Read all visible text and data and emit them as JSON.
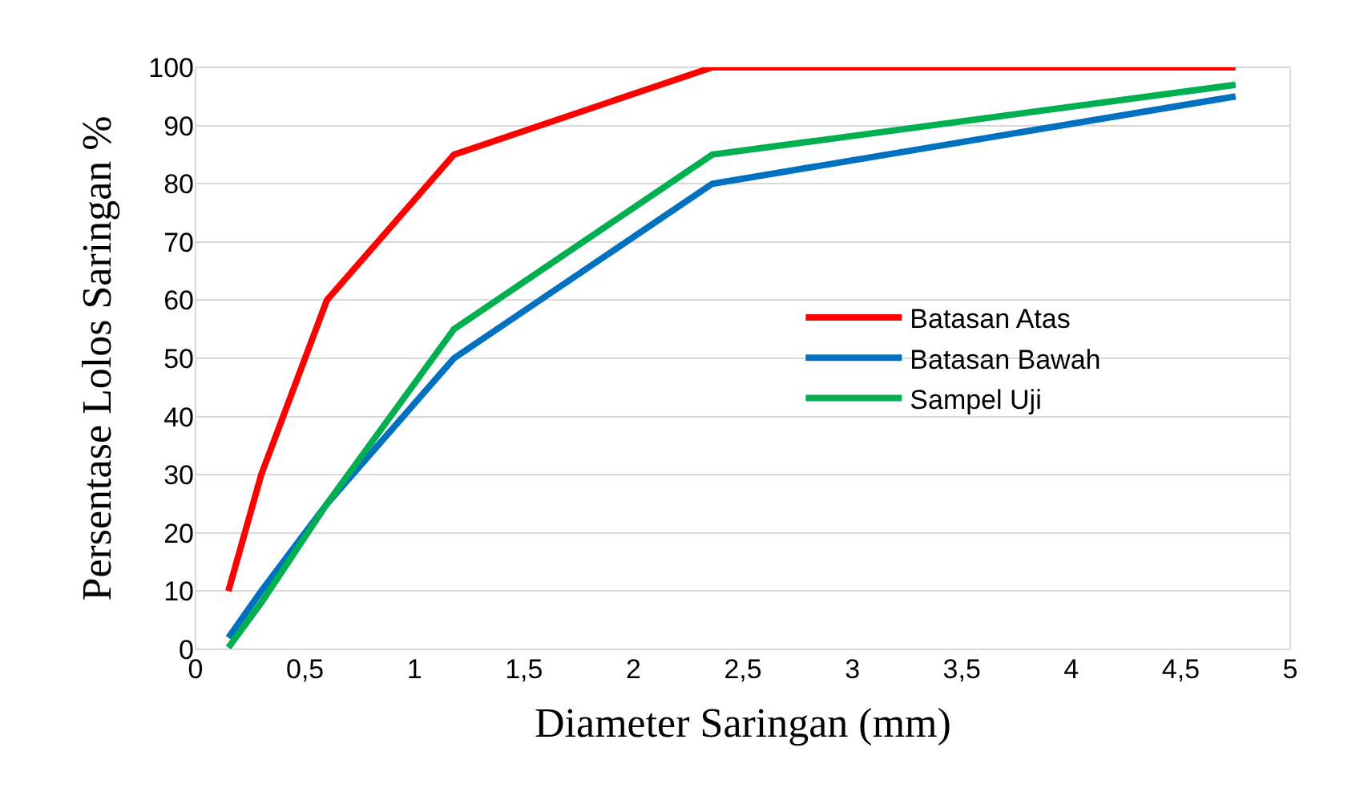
{
  "chart_data": {
    "type": "line",
    "xlabel": "Diameter Saringan (mm)",
    "ylabel": "Persentase Lolos Saringan %",
    "x": [
      0.15,
      0.3,
      0.6,
      1.18,
      2.36,
      4.75
    ],
    "series": [
      {
        "name": "Batasan Atas",
        "color": "#ff0000",
        "values": [
          10,
          30,
          60,
          85,
          100,
          100
        ]
      },
      {
        "name": "Batasan Bawah",
        "color": "#0070c0",
        "values": [
          2,
          10,
          25,
          50,
          80,
          95
        ]
      },
      {
        "name": "Sampel Uji",
        "color": "#00b050",
        "values": [
          0.3,
          8,
          25,
          55,
          85,
          97
        ]
      }
    ],
    "xlim": [
      0,
      5
    ],
    "xticks": [
      0,
      {
        "value": 0.5,
        "label": "0,5"
      },
      1,
      {
        "value": 1.5,
        "label": "1,5"
      },
      2,
      {
        "value": 2.5,
        "label": "2,5"
      },
      3,
      {
        "value": 3.5,
        "label": "3,5"
      },
      4,
      {
        "value": 4.5,
        "label": "4,5"
      },
      5
    ],
    "ylim": [
      0,
      100
    ],
    "yticks": [
      0,
      10,
      20,
      30,
      40,
      50,
      60,
      70,
      80,
      90,
      100
    ],
    "grid": "y",
    "legend": "right",
    "marker": "none",
    "line_style": "solid"
  }
}
